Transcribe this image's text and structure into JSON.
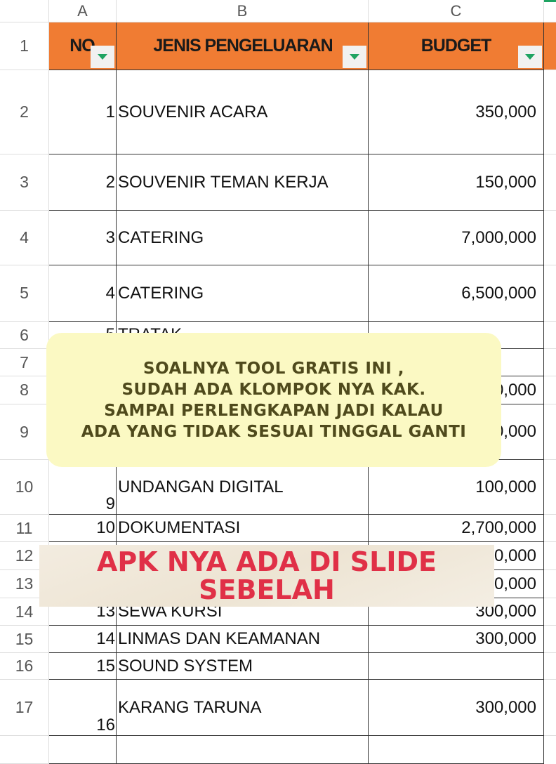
{
  "columns": [
    "A",
    "B",
    "C"
  ],
  "header": {
    "row": "1",
    "no": "NO",
    "jenis": "JENIS PENGELUARAN",
    "budget": "BUDGET"
  },
  "rows": [
    {
      "r": "2",
      "no": "1",
      "jenis": "SOUVENIR ACARA",
      "budget": "350,000"
    },
    {
      "r": "3",
      "no": "2",
      "jenis": "SOUVENIR TEMAN KERJA",
      "budget": "150,000"
    },
    {
      "r": "4",
      "no": "3",
      "jenis": "CATERING",
      "budget": "7,000,000"
    },
    {
      "r": "5",
      "no": "4",
      "jenis": "CATERING",
      "budget": "6,500,000"
    },
    {
      "r": "6",
      "no": "5",
      "jenis": "TRATAK",
      "budget": ""
    },
    {
      "r": "7",
      "no": "",
      "jenis": "",
      "budget": ""
    },
    {
      "r": "8",
      "no": "",
      "jenis": "",
      "budget": "0,000"
    },
    {
      "r": "9",
      "no": "",
      "jenis": "",
      "budget": "0,000"
    },
    {
      "r": "10",
      "no": "9",
      "jenis": "UNDANGAN DIGITAL",
      "budget": "100,000"
    },
    {
      "r": "11",
      "no": "10",
      "jenis": "DOKUMENTASI",
      "budget": "2,700,000"
    },
    {
      "r": "12",
      "no": "",
      "jenis": "",
      "budget": "0,000"
    },
    {
      "r": "13",
      "no": "",
      "jenis": "",
      "budget": "0,000"
    },
    {
      "r": "14",
      "no": "13",
      "jenis": "SEWA KURSI",
      "budget": "300,000"
    },
    {
      "r": "15",
      "no": "14",
      "jenis": "LINMAS DAN KEAMANAN",
      "budget": "300,000"
    },
    {
      "r": "16",
      "no": "15",
      "jenis": "SOUND SYSTEM",
      "budget": ""
    },
    {
      "r": "17",
      "no": "16",
      "jenis": "KARANG TARUNA",
      "budget": "300,000"
    }
  ],
  "overlay_note": [
    "SOALNYA TOOL GRATIS INI ,",
    "SUDAH ADA KLOMPOK NYA KAK.",
    "SAMPAI PERLENGKAPAN JADI KALAU",
    "ADA YANG TIDAK SESUAI TINGGAL GANTI"
  ],
  "overlay_banner": [
    "APK NYA ADA DI SLIDE",
    "SEBELAH"
  ],
  "colors": {
    "header": "#f07c33",
    "filter_arrow": "#1ea362",
    "note_bg": "#fbf9c3",
    "banner_text": "#e03047"
  }
}
